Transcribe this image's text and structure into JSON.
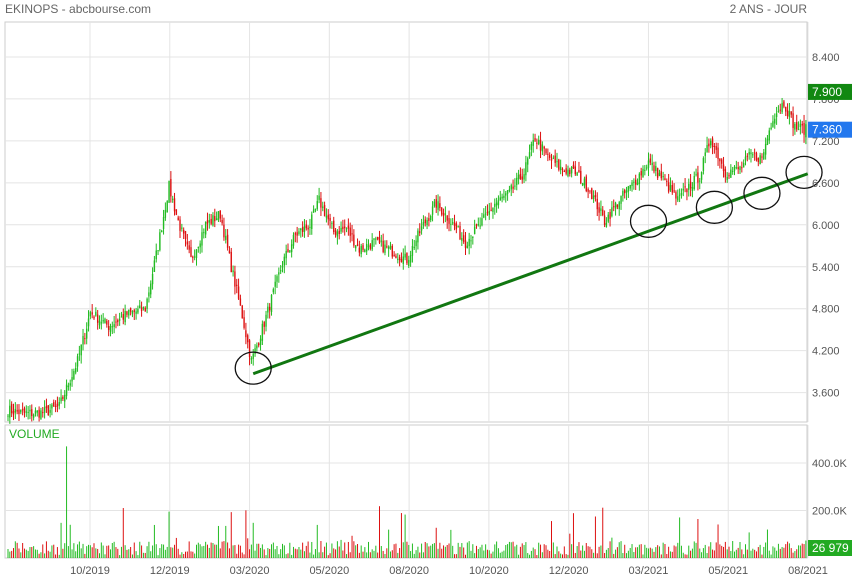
{
  "header": {
    "title_left": "EKINOPS - abcbourse.com",
    "title_right": "2 ANS - JOUR"
  },
  "chart_data": {
    "type": "candlestick",
    "price_axis": {
      "ticks": [
        "8.400",
        "7.800",
        "7.200",
        "6.600",
        "6.000",
        "5.400",
        "4.800",
        "4.200",
        "3.600"
      ],
      "ylim": [
        3.18,
        8.9
      ]
    },
    "volume_axis": {
      "title": "VOLUME",
      "ticks": [
        "400.0K",
        "200.0K"
      ],
      "ylim": [
        0,
        560000
      ]
    },
    "x_labels": [
      "10/2019",
      "12/2019",
      "03/2020",
      "05/2020",
      "08/2020",
      "10/2020",
      "12/2020",
      "03/2021",
      "05/2021",
      "08/2021"
    ],
    "last_high_label": "7.900",
    "last_close_label": "7.360",
    "last_volume_label": "26 979",
    "colors": {
      "up": "#22bb22",
      "down": "#dd1111",
      "trend": "#117711",
      "high_badge": "#118811",
      "close_badge": "#2277ee",
      "volume_badge": "#22aa22"
    },
    "price_path": [
      [
        0,
        3.35
      ],
      [
        10,
        3.3
      ],
      [
        20,
        3.32
      ],
      [
        28,
        3.4
      ],
      [
        38,
        4.05
      ],
      [
        45,
        4.75
      ],
      [
        55,
        4.55
      ],
      [
        65,
        4.72
      ],
      [
        75,
        4.8
      ],
      [
        82,
        5.7
      ],
      [
        88,
        6.55
      ],
      [
        93,
        6.05
      ],
      [
        100,
        5.5
      ],
      [
        108,
        6.0
      ],
      [
        116,
        6.15
      ],
      [
        122,
        5.4
      ],
      [
        128,
        4.7
      ],
      [
        133,
        4.05
      ],
      [
        137,
        4.35
      ],
      [
        143,
        4.85
      ],
      [
        150,
        5.45
      ],
      [
        157,
        5.85
      ],
      [
        165,
        6.0
      ],
      [
        170,
        6.35
      ],
      [
        178,
        5.9
      ],
      [
        185,
        5.95
      ],
      [
        192,
        5.65
      ],
      [
        200,
        5.75
      ],
      [
        208,
        5.65
      ],
      [
        218,
        5.5
      ],
      [
        226,
        5.95
      ],
      [
        234,
        6.3
      ],
      [
        242,
        6.05
      ],
      [
        250,
        5.75
      ],
      [
        258,
        6.0
      ],
      [
        266,
        6.3
      ],
      [
        274,
        6.45
      ],
      [
        282,
        6.75
      ],
      [
        288,
        7.25
      ],
      [
        294,
        7.0
      ],
      [
        302,
        6.8
      ],
      [
        310,
        6.75
      ],
      [
        318,
        6.5
      ],
      [
        326,
        6.05
      ],
      [
        334,
        6.35
      ],
      [
        342,
        6.6
      ],
      [
        350,
        6.9
      ],
      [
        358,
        6.65
      ],
      [
        366,
        6.35
      ],
      [
        372,
        6.55
      ],
      [
        378,
        6.7
      ],
      [
        384,
        7.25
      ],
      [
        392,
        6.75
      ],
      [
        400,
        6.8
      ],
      [
        406,
        7.0
      ],
      [
        412,
        6.95
      ],
      [
        418,
        7.55
      ],
      [
        424,
        7.75
      ],
      [
        430,
        7.4
      ],
      [
        436,
        7.36
      ]
    ],
    "trendline": {
      "from": [
        134,
        3.87
      ],
      "to": [
        437,
        6.73
      ]
    },
    "marked_points": [
      [
        134,
        3.95
      ],
      [
        350,
        6.05
      ],
      [
        386,
        6.25
      ],
      [
        412,
        6.45
      ],
      [
        435,
        6.75
      ]
    ]
  }
}
